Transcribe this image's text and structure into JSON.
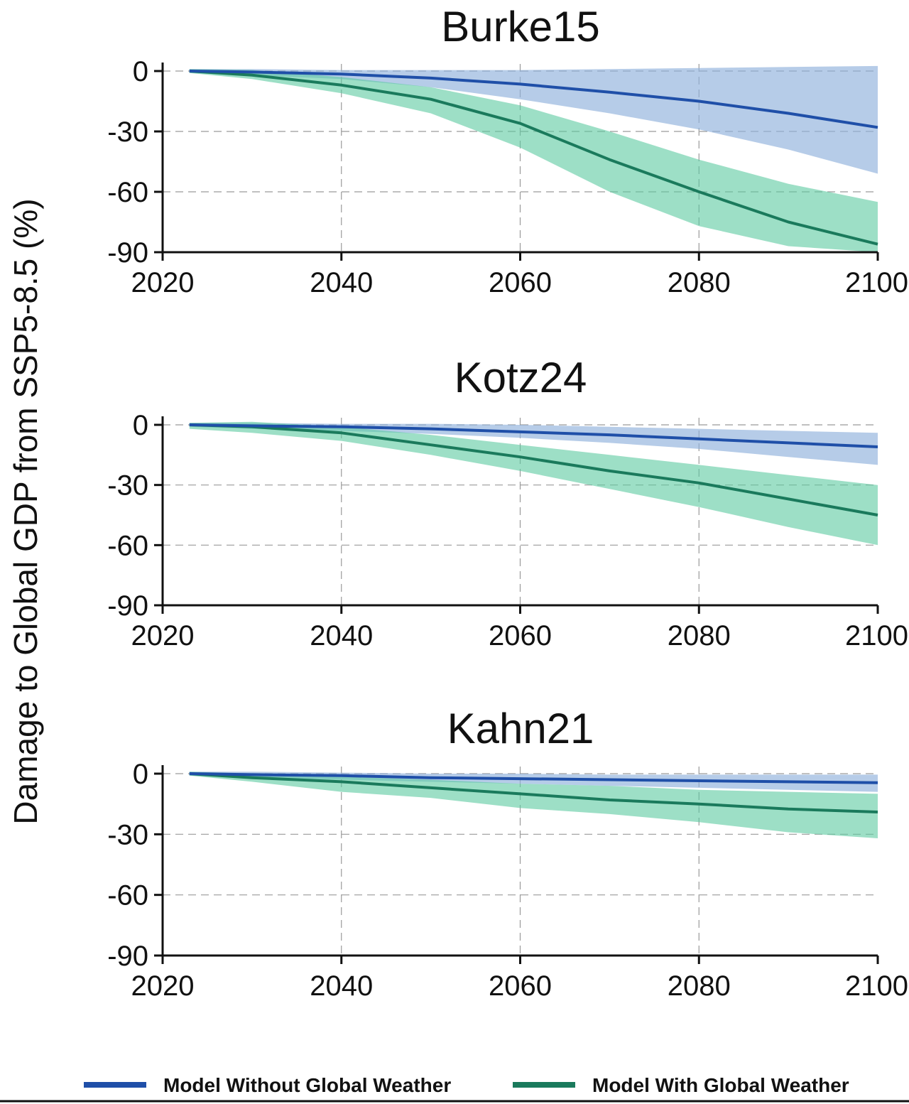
{
  "figure": {
    "ylabel": "Damage to Global GDP from SSP5-8.5 (%)",
    "legend": [
      {
        "name": "Model Without Global Weather",
        "color": "#1f4fa8"
      },
      {
        "name": "Model With Global Weather",
        "color": "#1a7a5c"
      }
    ],
    "colors": {
      "without_line": "#1f4fa8",
      "without_band": "#8fb0dc",
      "with_line": "#1a7a5c",
      "with_band": "#5ccaa0"
    }
  },
  "chart_data": [
    {
      "type": "area",
      "title": "Burke15",
      "xlim": [
        2020,
        2100
      ],
      "ylim": [
        -90,
        0
      ],
      "xticks": [
        "2020",
        "2040",
        "2060",
        "2080",
        "2100"
      ],
      "yticks": [
        "0",
        "-30",
        "-60",
        "-90"
      ],
      "series": [
        {
          "name": "Model Without Global Weather",
          "x": [
            2023,
            2030,
            2040,
            2050,
            2060,
            2070,
            2080,
            2090,
            2100
          ],
          "mean": [
            0,
            -0.5,
            -1.5,
            -3.5,
            -6.5,
            -10.5,
            -15,
            -21,
            -28
          ],
          "lower": [
            -1,
            -2,
            -4,
            -8,
            -14,
            -21,
            -29,
            -39,
            -51
          ],
          "upper": [
            1,
            1,
            0.5,
            0.5,
            0.5,
            1,
            1.5,
            2,
            2.5
          ]
        },
        {
          "name": "Model With Global Weather",
          "x": [
            2023,
            2030,
            2040,
            2050,
            2060,
            2070,
            2080,
            2090,
            2100
          ],
          "mean": [
            0,
            -2,
            -7,
            -14,
            -26,
            -44,
            -60,
            -75,
            -86
          ],
          "lower": [
            -1,
            -4,
            -11,
            -21,
            -38,
            -60,
            -77,
            -87,
            -90
          ],
          "upper": [
            1,
            0.5,
            -3,
            -8,
            -17,
            -30,
            -44,
            -56,
            -65
          ]
        }
      ]
    },
    {
      "type": "area",
      "title": "Kotz24",
      "xlim": [
        2020,
        2100
      ],
      "ylim": [
        -90,
        0
      ],
      "xticks": [
        "2020",
        "2040",
        "2060",
        "2080",
        "2100"
      ],
      "yticks": [
        "0",
        "-30",
        "-60",
        "-90"
      ],
      "series": [
        {
          "name": "Model Without Global Weather",
          "x": [
            2023,
            2030,
            2040,
            2050,
            2060,
            2070,
            2080,
            2090,
            2100
          ],
          "mean": [
            0,
            -0.5,
            -1,
            -2,
            -3.5,
            -5,
            -7,
            -9,
            -11
          ],
          "lower": [
            -1,
            -2,
            -3,
            -4.5,
            -6.5,
            -9,
            -12,
            -16,
            -20
          ],
          "upper": [
            1,
            1,
            0.5,
            0.5,
            0,
            -1,
            -2,
            -3,
            -4
          ]
        },
        {
          "name": "Model With Global Weather",
          "x": [
            2023,
            2030,
            2040,
            2050,
            2060,
            2070,
            2080,
            2090,
            2100
          ],
          "mean": [
            0,
            -1,
            -4,
            -10,
            -16,
            -23,
            -29,
            -37,
            -45
          ],
          "lower": [
            -2,
            -4,
            -8,
            -15,
            -23,
            -32,
            -41,
            -51,
            -60
          ],
          "upper": [
            1,
            1.5,
            -1,
            -5,
            -10,
            -15,
            -20,
            -25,
            -30
          ]
        }
      ]
    },
    {
      "type": "area",
      "title": "Kahn21",
      "xlim": [
        2020,
        2100
      ],
      "ylim": [
        -90,
        0
      ],
      "xticks": [
        "2020",
        "2040",
        "2060",
        "2080",
        "2100"
      ],
      "yticks": [
        "0",
        "-30",
        "-60",
        "-90"
      ],
      "series": [
        {
          "name": "Model Without Global Weather",
          "x": [
            2023,
            2030,
            2040,
            2050,
            2060,
            2070,
            2080,
            2090,
            2100
          ],
          "mean": [
            0,
            -0.5,
            -1,
            -2,
            -2.5,
            -3,
            -3.5,
            -4,
            -4.5
          ],
          "lower": [
            -1,
            -2,
            -3,
            -4,
            -5,
            -6,
            -7,
            -8,
            -9
          ],
          "upper": [
            1,
            1,
            0.5,
            0,
            0,
            -0.5,
            -0.5,
            -0.5,
            -0.5
          ]
        },
        {
          "name": "Model With Global Weather",
          "x": [
            2023,
            2030,
            2040,
            2050,
            2060,
            2070,
            2080,
            2090,
            2100
          ],
          "mean": [
            0,
            -2,
            -4,
            -7,
            -10,
            -13,
            -15,
            -17.5,
            -19
          ],
          "lower": [
            -1,
            -4,
            -9,
            -12,
            -17,
            -20,
            -24,
            -29,
            -32
          ],
          "upper": [
            1,
            0,
            -1.5,
            -3,
            -5,
            -6,
            -8,
            -9,
            -10
          ]
        }
      ]
    }
  ]
}
